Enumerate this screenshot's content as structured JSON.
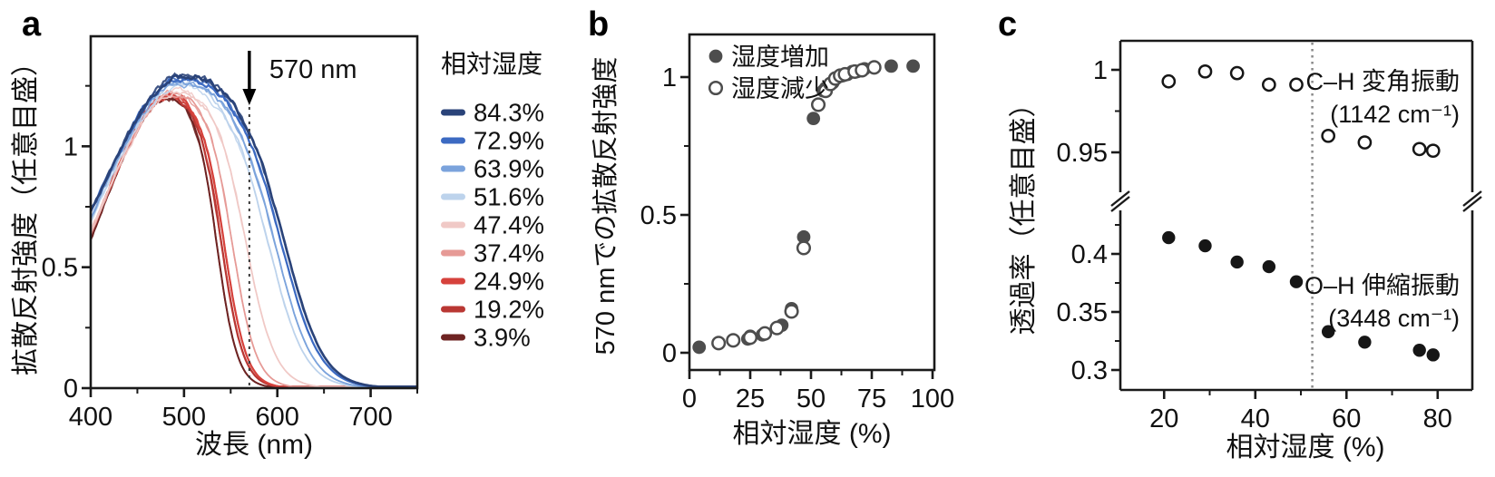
{
  "figure": {
    "background": "#ffffff",
    "axis_color": "#1a1a1a",
    "text_color": "#111111"
  },
  "panels": [
    {
      "letter": "a"
    },
    {
      "letter": "b"
    },
    {
      "letter": "c"
    }
  ],
  "chart_data": [
    {
      "panel": "a",
      "type": "line",
      "xlabel": "波長 (nm)",
      "ylabel": "拡散反射強度（任意目盛）",
      "xlim": [
        400,
        750
      ],
      "ylim": [
        0,
        1.455
      ],
      "xticks": [
        400,
        500,
        600,
        700
      ],
      "xminorticks": [
        450,
        550,
        650,
        750
      ],
      "yticks": [
        0,
        0.5,
        1
      ],
      "yminorticks": [
        0.25,
        0.75,
        1.25
      ],
      "annotation": {
        "label": "570 nm",
        "wavelength_nm": 570
      },
      "legend_title": "相対湿度",
      "series": [
        {
          "label": "84.3%",
          "color": "#2a4379",
          "peak_value": 1.3,
          "peak_wavelength_nm": 502,
          "edge_wavelength_nm": 616,
          "edge_width_nm": 21,
          "rise_sigma": 95,
          "line_width": 2.6
        },
        {
          "label": "72.9%",
          "color": "#3c6ac2",
          "peak_value": 1.29,
          "peak_wavelength_nm": 501,
          "edge_wavelength_nm": 612,
          "edge_width_nm": 21,
          "rise_sigma": 94,
          "line_width": 2.2
        },
        {
          "label": "63.9%",
          "color": "#7ba3dc",
          "peak_value": 1.27,
          "peak_wavelength_nm": 500,
          "edge_wavelength_nm": 604,
          "edge_width_nm": 20,
          "rise_sigma": 92,
          "line_width": 1.8
        },
        {
          "label": "51.6%",
          "color": "#bdd3ec",
          "peak_value": 1.26,
          "peak_wavelength_nm": 499,
          "edge_wavelength_nm": 596,
          "edge_width_nm": 20,
          "rise_sigma": 90,
          "line_width": 1.7
        },
        {
          "label": "47.4%",
          "color": "#f0c9c6",
          "peak_value": 1.24,
          "peak_wavelength_nm": 497,
          "edge_wavelength_nm": 569,
          "edge_width_nm": 16,
          "rise_sigma": 85,
          "line_width": 1.7
        },
        {
          "label": "37.4%",
          "color": "#e69a96",
          "peak_value": 1.23,
          "peak_wavelength_nm": 492,
          "edge_wavelength_nm": 553,
          "edge_width_nm": 13,
          "rise_sigma": 80,
          "line_width": 1.7
        },
        {
          "label": "24.9%",
          "color": "#d6423c",
          "peak_value": 1.22,
          "peak_wavelength_nm": 488,
          "edge_wavelength_nm": 544,
          "edge_width_nm": 12,
          "rise_sigma": 77,
          "line_width": 2.2
        },
        {
          "label": "19.2%",
          "color": "#b93733",
          "peak_value": 1.22,
          "peak_wavelength_nm": 487,
          "edge_wavelength_nm": 541,
          "edge_width_nm": 12,
          "rise_sigma": 76,
          "line_width": 2.2
        },
        {
          "label": "3.9%",
          "color": "#6e2322",
          "peak_value": 1.21,
          "peak_wavelength_nm": 486,
          "edge_wavelength_nm": 536,
          "edge_width_nm": 11,
          "rise_sigma": 74,
          "line_width": 2.0
        }
      ]
    },
    {
      "panel": "b",
      "type": "scatter",
      "xlabel": "相対湿度 (%)",
      "ylabel": "570 nmでの拡散反射強度",
      "xlim": [
        0,
        100
      ],
      "ylim": [
        -0.06,
        1.155
      ],
      "xticks": [
        0,
        25,
        50,
        75,
        100
      ],
      "xminorticks": [
        12.5,
        37.5,
        62.5,
        87.5
      ],
      "yticks": [
        0,
        0.5,
        1
      ],
      "yminorticks": [
        0.25,
        0.75
      ],
      "marker_color": "#4d4d4d",
      "legend_position": "top-left",
      "series": [
        {
          "label": "湿度増加",
          "marker": "filled",
          "points": [
            [
              4,
              0.02
            ],
            [
              18,
              0.045
            ],
            [
              24,
              0.05
            ],
            [
              25,
              0.06
            ],
            [
              30,
              0.065
            ],
            [
              31,
              0.07
            ],
            [
              36,
              0.09
            ],
            [
              38,
              0.1
            ],
            [
              42,
              0.16
            ],
            [
              47,
              0.42
            ],
            [
              51,
              0.85
            ],
            [
              55,
              0.95
            ],
            [
              56,
              0.96
            ],
            [
              59,
              0.98
            ],
            [
              61,
              1.0
            ],
            [
              63,
              1.005
            ],
            [
              65,
              1.01
            ],
            [
              67,
              1.02
            ],
            [
              69,
              1.02
            ],
            [
              72,
              1.03
            ],
            [
              83,
              1.04
            ],
            [
              92,
              1.04
            ]
          ]
        },
        {
          "label": "湿度減少",
          "marker": "open",
          "points": [
            [
              12,
              0.035
            ],
            [
              18,
              0.045
            ],
            [
              25,
              0.055
            ],
            [
              31,
              0.07
            ],
            [
              36,
              0.09
            ],
            [
              42,
              0.15
            ],
            [
              47,
              0.38
            ],
            [
              53,
              0.9
            ],
            [
              56,
              0.95
            ],
            [
              58,
              0.975
            ],
            [
              60,
              0.995
            ],
            [
              62,
              1.005
            ],
            [
              64,
              1.01
            ],
            [
              68,
              1.02
            ],
            [
              71,
              1.025
            ],
            [
              76,
              1.035
            ]
          ]
        }
      ]
    },
    {
      "panel": "c",
      "type": "scatter-broken-y",
      "xlabel": "相対湿度 (%)",
      "ylabel": "透過率（任意目盛）",
      "xlim": [
        10.4,
        87.6
      ],
      "xticks": [
        20,
        40,
        60,
        80
      ],
      "xminorticks": [
        30,
        50,
        70
      ],
      "upper_yticks": [
        1,
        0.95
      ],
      "upper_yminorticks": [
        0.975
      ],
      "lower_yticks": [
        0.4,
        0.35,
        0.3
      ],
      "lower_yminorticks": [
        0.425,
        0.375,
        0.325
      ],
      "axis_break_between": [
        0.45,
        0.92
      ],
      "vline_rh": 52.5,
      "marker_color": "#161616",
      "series": [
        {
          "label": "C–H 変角振動",
          "sublabel": "(1142 cm⁻¹)",
          "marker": "open",
          "rh": [
            21,
            29,
            36,
            43,
            49,
            56,
            64,
            76,
            79
          ],
          "values": [
            0.993,
            0.999,
            0.998,
            0.991,
            0.991,
            0.96,
            0.956,
            0.952,
            0.951
          ]
        },
        {
          "label": "O–H 伸縮振動",
          "sublabel": "(3448 cm⁻¹)",
          "marker": "filled",
          "rh": [
            21,
            29,
            36,
            43,
            49,
            56,
            64,
            76,
            79
          ],
          "values": [
            0.414,
            0.407,
            0.393,
            0.389,
            0.376,
            0.333,
            0.324,
            0.317,
            0.313
          ]
        }
      ]
    }
  ]
}
